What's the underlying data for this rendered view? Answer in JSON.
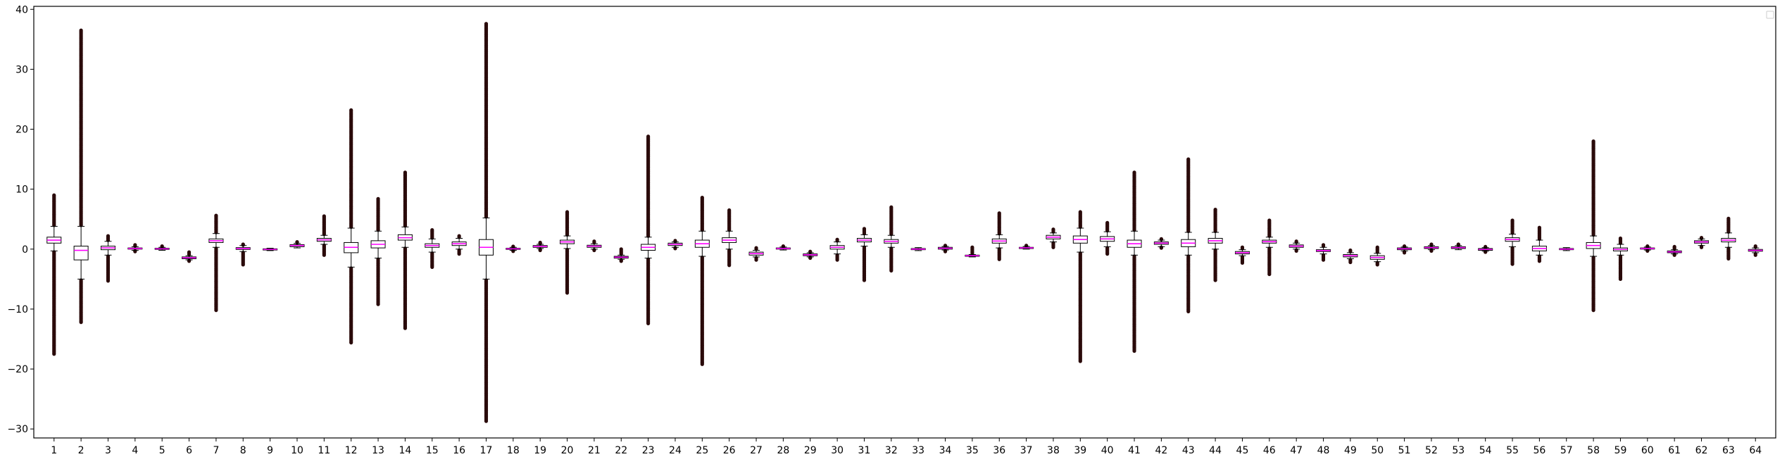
{
  "chart_data": {
    "type": "box",
    "title": "",
    "xlabel": "",
    "ylabel": "",
    "ylim": [
      -31.5,
      40.5
    ],
    "yticks": [
      -30,
      -20,
      -10,
      0,
      10,
      20,
      30,
      40
    ],
    "ytick_labels": [
      "−30",
      "−20",
      "−10",
      "0",
      "10",
      "20",
      "30",
      "40"
    ],
    "grid": false,
    "legend": {
      "position": "top-right",
      "entries": []
    },
    "colors": {
      "box_edge": "#000000",
      "median": "#ff00ff",
      "whisker": "#000000",
      "flier": "#2a0a0a",
      "axes": "#000000"
    },
    "categories": [
      "1",
      "2",
      "3",
      "4",
      "5",
      "6",
      "7",
      "8",
      "9",
      "10",
      "11",
      "12",
      "13",
      "14",
      "15",
      "16",
      "17",
      "18",
      "19",
      "20",
      "21",
      "22",
      "23",
      "24",
      "25",
      "26",
      "27",
      "28",
      "29",
      "30",
      "31",
      "32",
      "33",
      "34",
      "35",
      "36",
      "37",
      "38",
      "39",
      "40",
      "41",
      "42",
      "43",
      "44",
      "45",
      "46",
      "47",
      "48",
      "49",
      "50",
      "51",
      "52",
      "53",
      "54",
      "55",
      "56",
      "57",
      "58",
      "59",
      "60",
      "61",
      "62",
      "63",
      "64"
    ],
    "boxes": [
      {
        "q1": 1.0,
        "median": 1.5,
        "q3": 2.0,
        "whislo": -0.3,
        "whishi": 3.8,
        "fliers_lo": -17.5,
        "fliers_hi": 9.0
      },
      {
        "q1": -1.8,
        "median": -0.2,
        "q3": 0.5,
        "whislo": -5.0,
        "whishi": 3.8,
        "fliers_lo": -12.2,
        "fliers_hi": 36.5
      },
      {
        "q1": -0.1,
        "median": 0.2,
        "q3": 0.5,
        "whislo": -1.0,
        "whishi": 1.3,
        "fliers_lo": -5.3,
        "fliers_hi": 2.2
      },
      {
        "q1": 0.0,
        "median": 0.1,
        "q3": 0.2,
        "whislo": -0.2,
        "whishi": 0.4,
        "fliers_lo": -0.4,
        "fliers_hi": 0.7
      },
      {
        "q1": -0.05,
        "median": 0.05,
        "q3": 0.15,
        "whislo": -0.2,
        "whishi": 0.3,
        "fliers_lo": -0.3,
        "fliers_hi": 0.5
      },
      {
        "q1": -1.6,
        "median": -1.45,
        "q3": -1.3,
        "whislo": -1.8,
        "whishi": -1.1,
        "fliers_lo": -2.0,
        "fliers_hi": -0.5
      },
      {
        "q1": 1.1,
        "median": 1.4,
        "q3": 1.7,
        "whislo": 0.3,
        "whishi": 2.6,
        "fliers_lo": -10.2,
        "fliers_hi": 5.6
      },
      {
        "q1": -0.05,
        "median": 0.1,
        "q3": 0.25,
        "whislo": -0.4,
        "whishi": 0.6,
        "fliers_lo": -2.6,
        "fliers_hi": 0.8
      },
      {
        "q1": -0.15,
        "median": -0.05,
        "q3": 0.05,
        "whislo": -0.25,
        "whishi": 0.15,
        "fliers_lo": -0.35,
        "fliers_hi": 0.25
      },
      {
        "q1": 0.4,
        "median": 0.6,
        "q3": 0.75,
        "whislo": 0.2,
        "whishi": 0.95,
        "fliers_lo": 0.1,
        "fliers_hi": 1.2
      },
      {
        "q1": 1.3,
        "median": 1.55,
        "q3": 1.8,
        "whislo": 0.8,
        "whishi": 2.3,
        "fliers_lo": -1.0,
        "fliers_hi": 5.5
      },
      {
        "q1": -0.6,
        "median": 0.3,
        "q3": 1.1,
        "whislo": -3.0,
        "whishi": 3.5,
        "fliers_lo": -15.6,
        "fliers_hi": 23.2
      },
      {
        "q1": 0.2,
        "median": 0.8,
        "q3": 1.4,
        "whislo": -1.5,
        "whishi": 3.0,
        "fliers_lo": -9.2,
        "fliers_hi": 8.4
      },
      {
        "q1": 1.5,
        "median": 1.9,
        "q3": 2.4,
        "whislo": 0.3,
        "whishi": 3.7,
        "fliers_lo": -13.2,
        "fliers_hi": 12.8
      },
      {
        "q1": 0.3,
        "median": 0.6,
        "q3": 0.9,
        "whislo": -0.5,
        "whishi": 1.7,
        "fliers_lo": -3.0,
        "fliers_hi": 3.2
      },
      {
        "q1": 0.6,
        "median": 0.9,
        "q3": 1.2,
        "whislo": 0.0,
        "whishi": 1.8,
        "fliers_lo": -0.8,
        "fliers_hi": 2.2
      },
      {
        "q1": -1.0,
        "median": 0.3,
        "q3": 1.6,
        "whislo": -5.0,
        "whishi": 5.2,
        "fliers_lo": -28.7,
        "fliers_hi": 37.6
      },
      {
        "q1": -0.05,
        "median": 0.05,
        "q3": 0.15,
        "whislo": -0.2,
        "whishi": 0.3,
        "fliers_lo": -0.35,
        "fliers_hi": 0.45
      },
      {
        "q1": 0.3,
        "median": 0.45,
        "q3": 0.6,
        "whislo": 0.1,
        "whishi": 0.8,
        "fliers_lo": -0.2,
        "fliers_hi": 1.1
      },
      {
        "q1": 0.9,
        "median": 1.2,
        "q3": 1.5,
        "whislo": 0.1,
        "whishi": 2.2,
        "fliers_lo": -7.3,
        "fliers_hi": 6.2
      },
      {
        "q1": 0.3,
        "median": 0.5,
        "q3": 0.65,
        "whislo": 0.0,
        "whishi": 0.9,
        "fliers_lo": -0.2,
        "fliers_hi": 1.3
      },
      {
        "q1": -1.5,
        "median": -1.35,
        "q3": -1.2,
        "whislo": -1.7,
        "whishi": -1.0,
        "fliers_lo": -2.0,
        "fliers_hi": 0.0
      },
      {
        "q1": -0.2,
        "median": 0.3,
        "q3": 0.8,
        "whislo": -1.5,
        "whishi": 2.0,
        "fliers_lo": -12.4,
        "fliers_hi": 18.8
      },
      {
        "q1": 0.6,
        "median": 0.8,
        "q3": 1.0,
        "whislo": 0.3,
        "whishi": 1.2,
        "fliers_lo": 0.1,
        "fliers_hi": 1.4
      },
      {
        "q1": 0.3,
        "median": 0.9,
        "q3": 1.5,
        "whislo": -1.2,
        "whishi": 3.0,
        "fliers_lo": -19.2,
        "fliers_hi": 8.6
      },
      {
        "q1": 1.1,
        "median": 1.5,
        "q3": 1.9,
        "whislo": 0.0,
        "whishi": 3.0,
        "fliers_lo": -2.7,
        "fliers_hi": 6.5
      },
      {
        "q1": -1.0,
        "median": -0.75,
        "q3": -0.5,
        "whislo": -1.3,
        "whishi": -0.2,
        "fliers_lo": -1.8,
        "fliers_hi": 0.2
      },
      {
        "q1": 0.0,
        "median": 0.1,
        "q3": 0.2,
        "whislo": -0.15,
        "whishi": 0.35,
        "fliers_lo": -0.25,
        "fliers_hi": 0.5
      },
      {
        "q1": -1.1,
        "median": -0.95,
        "q3": -0.8,
        "whislo": -1.3,
        "whishi": -0.6,
        "fliers_lo": -1.5,
        "fliers_hi": -0.4
      },
      {
        "q1": 0.0,
        "median": 0.3,
        "q3": 0.6,
        "whislo": -0.8,
        "whishi": 1.2,
        "fliers_lo": -1.8,
        "fliers_hi": 1.6
      },
      {
        "q1": 1.2,
        "median": 1.5,
        "q3": 1.8,
        "whislo": 0.5,
        "whishi": 2.4,
        "fliers_lo": -5.2,
        "fliers_hi": 3.4
      },
      {
        "q1": 1.0,
        "median": 1.3,
        "q3": 1.6,
        "whislo": 0.3,
        "whishi": 2.3,
        "fliers_lo": -3.6,
        "fliers_hi": 7.0
      },
      {
        "q1": -0.1,
        "median": 0.0,
        "q3": 0.1,
        "whislo": -0.25,
        "whishi": 0.25,
        "fliers_lo": -0.35,
        "fliers_hi": 0.35
      },
      {
        "q1": 0.0,
        "median": 0.15,
        "q3": 0.3,
        "whislo": -0.15,
        "whishi": 0.45,
        "fliers_lo": -0.4,
        "fliers_hi": 0.6
      },
      {
        "q1": -1.2,
        "median": -1.1,
        "q3": -1.0,
        "whislo": -1.3,
        "whishi": -0.9,
        "fliers_lo": -1.4,
        "fliers_hi": 0.3
      },
      {
        "q1": 1.0,
        "median": 1.35,
        "q3": 1.7,
        "whislo": 0.2,
        "whishi": 2.4,
        "fliers_lo": -1.7,
        "fliers_hi": 6.0
      },
      {
        "q1": 0.1,
        "median": 0.2,
        "q3": 0.3,
        "whislo": 0.0,
        "whishi": 0.45,
        "fliers_lo": -0.1,
        "fliers_hi": 0.6
      },
      {
        "q1": 1.7,
        "median": 2.0,
        "q3": 2.3,
        "whislo": 1.2,
        "whishi": 2.7,
        "fliers_lo": 0.3,
        "fliers_hi": 3.3
      },
      {
        "q1": 1.0,
        "median": 1.6,
        "q3": 2.2,
        "whislo": -0.5,
        "whishi": 3.5,
        "fliers_lo": -18.7,
        "fliers_hi": 6.2
      },
      {
        "q1": 1.3,
        "median": 1.7,
        "q3": 2.1,
        "whislo": 0.4,
        "whishi": 2.9,
        "fliers_lo": -0.8,
        "fliers_hi": 4.4
      },
      {
        "q1": 0.3,
        "median": 0.9,
        "q3": 1.5,
        "whislo": -1.0,
        "whishi": 3.0,
        "fliers_lo": -17.0,
        "fliers_hi": 12.8
      },
      {
        "q1": 0.8,
        "median": 1.0,
        "q3": 1.2,
        "whislo": 0.4,
        "whishi": 1.5,
        "fliers_lo": 0.2,
        "fliers_hi": 1.7
      },
      {
        "q1": 0.4,
        "median": 1.0,
        "q3": 1.6,
        "whislo": -1.0,
        "whishi": 2.8,
        "fliers_lo": -10.4,
        "fliers_hi": 15.0
      },
      {
        "q1": 1.0,
        "median": 1.4,
        "q3": 1.8,
        "whislo": 0.0,
        "whishi": 2.8,
        "fliers_lo": -5.2,
        "fliers_hi": 6.6
      },
      {
        "q1": -0.8,
        "median": -0.6,
        "q3": -0.4,
        "whislo": -1.1,
        "whishi": -0.1,
        "fliers_lo": -2.3,
        "fliers_hi": 0.3
      },
      {
        "q1": 1.0,
        "median": 1.25,
        "q3": 1.5,
        "whislo": 0.3,
        "whishi": 2.0,
        "fliers_lo": -4.2,
        "fliers_hi": 4.8
      },
      {
        "q1": 0.3,
        "median": 0.5,
        "q3": 0.7,
        "whislo": 0.0,
        "whishi": 1.0,
        "fliers_lo": -0.3,
        "fliers_hi": 1.3
      },
      {
        "q1": -0.4,
        "median": -0.25,
        "q3": -0.1,
        "whislo": -0.8,
        "whishi": 0.3,
        "fliers_lo": -1.8,
        "fliers_hi": 0.7
      },
      {
        "q1": -1.3,
        "median": -1.1,
        "q3": -0.9,
        "whislo": -1.6,
        "whishi": -0.6,
        "fliers_lo": -2.2,
        "fliers_hi": -0.2
      },
      {
        "q1": -1.7,
        "median": -1.4,
        "q3": -1.1,
        "whislo": -2.1,
        "whishi": -0.7,
        "fliers_lo": -2.6,
        "fliers_hi": 0.3
      },
      {
        "q1": -0.1,
        "median": 0.05,
        "q3": 0.2,
        "whislo": -0.3,
        "whishi": 0.35,
        "fliers_lo": -0.6,
        "fliers_hi": 0.5
      },
      {
        "q1": 0.1,
        "median": 0.25,
        "q3": 0.4,
        "whislo": -0.1,
        "whishi": 0.6,
        "fliers_lo": -0.3,
        "fliers_hi": 0.8
      },
      {
        "q1": 0.1,
        "median": 0.25,
        "q3": 0.4,
        "whislo": -0.1,
        "whishi": 0.6,
        "fliers_lo": -0.2,
        "fliers_hi": 0.8
      },
      {
        "q1": -0.2,
        "median": -0.05,
        "q3": 0.1,
        "whislo": -0.35,
        "whishi": 0.25,
        "fliers_lo": -0.5,
        "fliers_hi": 0.4
      },
      {
        "q1": 1.3,
        "median": 1.6,
        "q3": 1.9,
        "whislo": 0.4,
        "whishi": 2.5,
        "fliers_lo": -2.5,
        "fliers_hi": 4.8
      },
      {
        "q1": -0.3,
        "median": 0.1,
        "q3": 0.5,
        "whislo": -1.0,
        "whishi": 1.5,
        "fliers_lo": -2.0,
        "fliers_hi": 3.6
      },
      {
        "q1": -0.1,
        "median": 0.0,
        "q3": 0.1,
        "whislo": -0.25,
        "whishi": 0.25,
        "fliers_lo": -0.35,
        "fliers_hi": 0.35
      },
      {
        "q1": 0.1,
        "median": 0.6,
        "q3": 1.1,
        "whislo": -1.2,
        "whishi": 2.2,
        "fliers_lo": -10.2,
        "fliers_hi": 18.0
      },
      {
        "q1": -0.3,
        "median": -0.05,
        "q3": 0.2,
        "whislo": -1.0,
        "whishi": 0.8,
        "fliers_lo": -5.0,
        "fliers_hi": 1.8
      },
      {
        "q1": 0.0,
        "median": 0.1,
        "q3": 0.2,
        "whislo": -0.15,
        "whishi": 0.35,
        "fliers_lo": -0.3,
        "fliers_hi": 0.5
      },
      {
        "q1": -0.6,
        "median": -0.45,
        "q3": -0.3,
        "whislo": -0.8,
        "whishi": -0.1,
        "fliers_lo": -1.0,
        "fliers_hi": 0.4
      },
      {
        "q1": 1.0,
        "median": 1.2,
        "q3": 1.4,
        "whislo": 0.6,
        "whishi": 1.7,
        "fliers_lo": 0.3,
        "fliers_hi": 1.9
      },
      {
        "q1": 1.2,
        "median": 1.5,
        "q3": 1.8,
        "whislo": 0.3,
        "whishi": 2.7,
        "fliers_lo": -1.6,
        "fliers_hi": 5.1
      },
      {
        "q1": -0.35,
        "median": -0.2,
        "q3": -0.05,
        "whislo": -0.6,
        "whishi": 0.2,
        "fliers_lo": -1.0,
        "fliers_hi": 0.5
      }
    ]
  }
}
